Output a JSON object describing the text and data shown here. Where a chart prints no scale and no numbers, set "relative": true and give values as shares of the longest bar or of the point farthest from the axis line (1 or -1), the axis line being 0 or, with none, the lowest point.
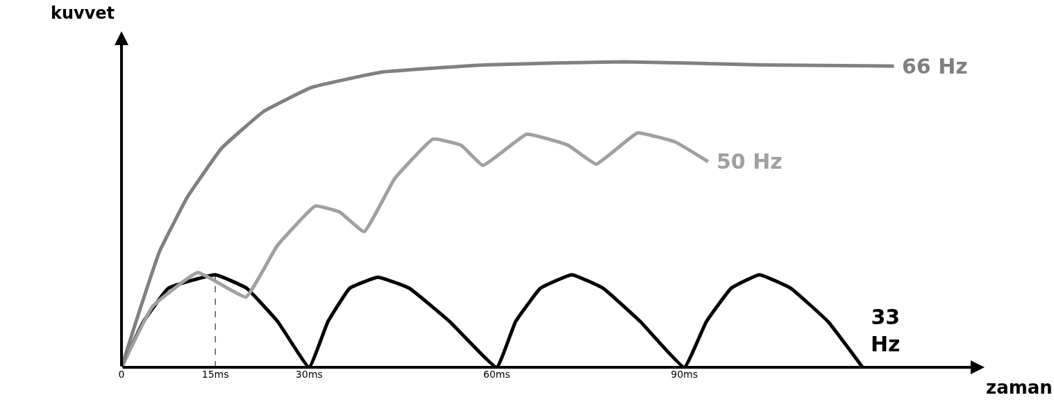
{
  "chart_data": {
    "type": "line",
    "relative": true,
    "xlabel": "zaman",
    "ylabel": "kuvvet",
    "xlim": [
      0,
      138
    ],
    "xticks": [
      0,
      {
        "value": 15,
        "label": "15ms"
      },
      {
        "value": 30,
        "label": "30ms"
      },
      {
        "value": 60,
        "label": "60ms"
      },
      {
        "value": 90,
        "label": "90ms"
      }
    ],
    "grid": false,
    "legend": false,
    "marker": "none",
    "line_style": "solid",
    "ref_lines": [
      {
        "axis": "x",
        "value": 15,
        "line_style": "dashed",
        "color": "#000000"
      }
    ],
    "series": [
      {
        "name": "33 Hz",
        "color": "#000000",
        "x": [
          0,
          3.5,
          7.5,
          15,
          20,
          25,
          30,
          33,
          36.5,
          41,
          46,
          52.5,
          60,
          63,
          67,
          72,
          77,
          83,
          90,
          93.5,
          97.5,
          102,
          107,
          113,
          118.5
        ],
        "values": [
          0,
          0.149,
          0.259,
          0.303,
          0.259,
          0.149,
          0,
          0.149,
          0.259,
          0.295,
          0.259,
          0.149,
          0,
          0.149,
          0.259,
          0.303,
          0.259,
          0.149,
          0,
          0.149,
          0.259,
          0.303,
          0.259,
          0.149,
          0
        ]
      },
      {
        "name": "50 Hz",
        "color": "#a0a0a0",
        "x": [
          0,
          5.0,
          12.2,
          19.9,
          24.9,
          31.0,
          34.9,
          38.8,
          43.7,
          49.8,
          54.3,
          57.8,
          64.8,
          71.4,
          75.9,
          82.5,
          88.6,
          93.8
        ],
        "values": [
          0,
          0.2,
          0.31,
          0.23,
          0.398,
          0.528,
          0.508,
          0.444,
          0.618,
          0.747,
          0.727,
          0.661,
          0.763,
          0.727,
          0.665,
          0.767,
          0.737,
          0.673
        ]
      },
      {
        "name": "66 Hz",
        "color": "#808080",
        "x": [
          0,
          2.8,
          6.1,
          10.5,
          16,
          22.7,
          30.4,
          41.5,
          58.1,
          80.3,
          102.4,
          123.5
        ],
        "values": [
          0,
          0.18,
          0.38,
          0.556,
          0.717,
          0.837,
          0.916,
          0.966,
          0.99,
          1.0,
          0.99,
          0.986
        ]
      }
    ]
  }
}
